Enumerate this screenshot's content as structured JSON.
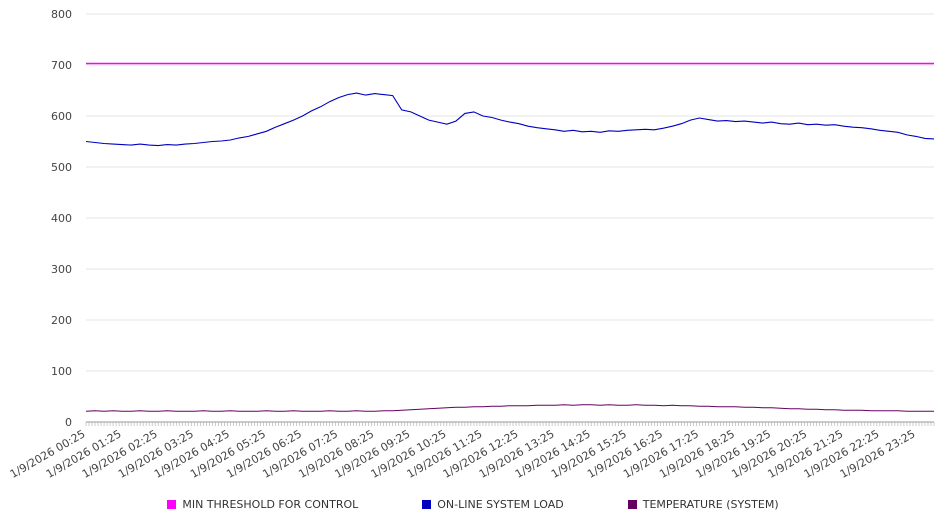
{
  "chart_data": {
    "type": "line",
    "title": "",
    "xlabel": "",
    "ylabel": "",
    "ylim": [
      0,
      800
    ],
    "y_ticks": [
      0,
      100,
      200,
      300,
      400,
      500,
      600,
      700,
      800
    ],
    "grid": "horizontal",
    "legend_position": "bottom",
    "x_tick_interval_minutes": 60,
    "series_sample_interval_minutes": 15,
    "x_total_minutes": 1410,
    "x_tick_labels": [
      "1/9/2026 00:25",
      "1/9/2026 01:25",
      "1/9/2026 02:25",
      "1/9/2026 03:25",
      "1/9/2026 04:25",
      "1/9/2026 05:25",
      "1/9/2026 06:25",
      "1/9/2026 07:25",
      "1/9/2026 08:25",
      "1/9/2026 09:25",
      "1/9/2026 10:25",
      "1/9/2026 11:25",
      "1/9/2026 12:25",
      "1/9/2026 13:25",
      "1/9/2026 14:25",
      "1/9/2026 15:25",
      "1/9/2026 16:25",
      "1/9/2026 17:25",
      "1/9/2026 18:25",
      "1/9/2026 19:25",
      "1/9/2026 20:25",
      "1/9/2026 21:25",
      "1/9/2026 22:25",
      "1/9/2026 23:25"
    ],
    "series": [
      {
        "name": "MIN THRESHOLD FOR CONTROL",
        "color": "#ff00ff",
        "width": 1.6,
        "values": [
          703,
          703
        ]
      },
      {
        "name": "ON-LINE SYSTEM LOAD",
        "color": "#0000c0",
        "width": 1.1,
        "values": [
          550,
          548,
          546,
          545,
          544,
          543,
          545,
          543,
          542,
          544,
          543,
          545,
          546,
          548,
          550,
          551,
          553,
          557,
          560,
          565,
          570,
          578,
          585,
          592,
          600,
          610,
          618,
          628,
          636,
          642,
          645,
          641,
          644,
          642,
          640,
          612,
          608,
          600,
          592,
          588,
          584,
          590,
          605,
          608,
          600,
          597,
          592,
          588,
          585,
          580,
          577,
          575,
          573,
          570,
          572,
          569,
          570,
          568,
          571,
          570,
          572,
          573,
          574,
          573,
          576,
          580,
          585,
          592,
          596,
          593,
          590,
          591,
          589,
          590,
          588,
          586,
          588,
          585,
          584,
          586,
          583,
          584,
          582,
          583,
          580,
          578,
          577,
          575,
          572,
          570,
          568,
          563,
          560,
          556,
          555
        ]
      },
      {
        "name": "TEMPERATURE (SYSTEM)",
        "color": "#660060",
        "width": 1.0,
        "values": [
          21,
          22,
          21,
          22,
          21,
          21,
          22,
          21,
          21,
          22,
          21,
          21,
          21,
          22,
          21,
          21,
          22,
          21,
          21,
          21,
          22,
          21,
          21,
          22,
          21,
          21,
          21,
          22,
          21,
          21,
          22,
          21,
          21,
          22,
          22,
          23,
          24,
          25,
          26,
          27,
          28,
          29,
          29,
          30,
          30,
          31,
          31,
          32,
          32,
          32,
          33,
          33,
          33,
          34,
          33,
          34,
          34,
          33,
          34,
          33,
          33,
          34,
          33,
          33,
          32,
          33,
          32,
          32,
          31,
          31,
          30,
          30,
          30,
          29,
          29,
          28,
          28,
          27,
          26,
          26,
          25,
          25,
          24,
          24,
          23,
          23,
          23,
          22,
          22,
          22,
          22,
          21,
          21,
          21,
          21
        ]
      }
    ]
  }
}
